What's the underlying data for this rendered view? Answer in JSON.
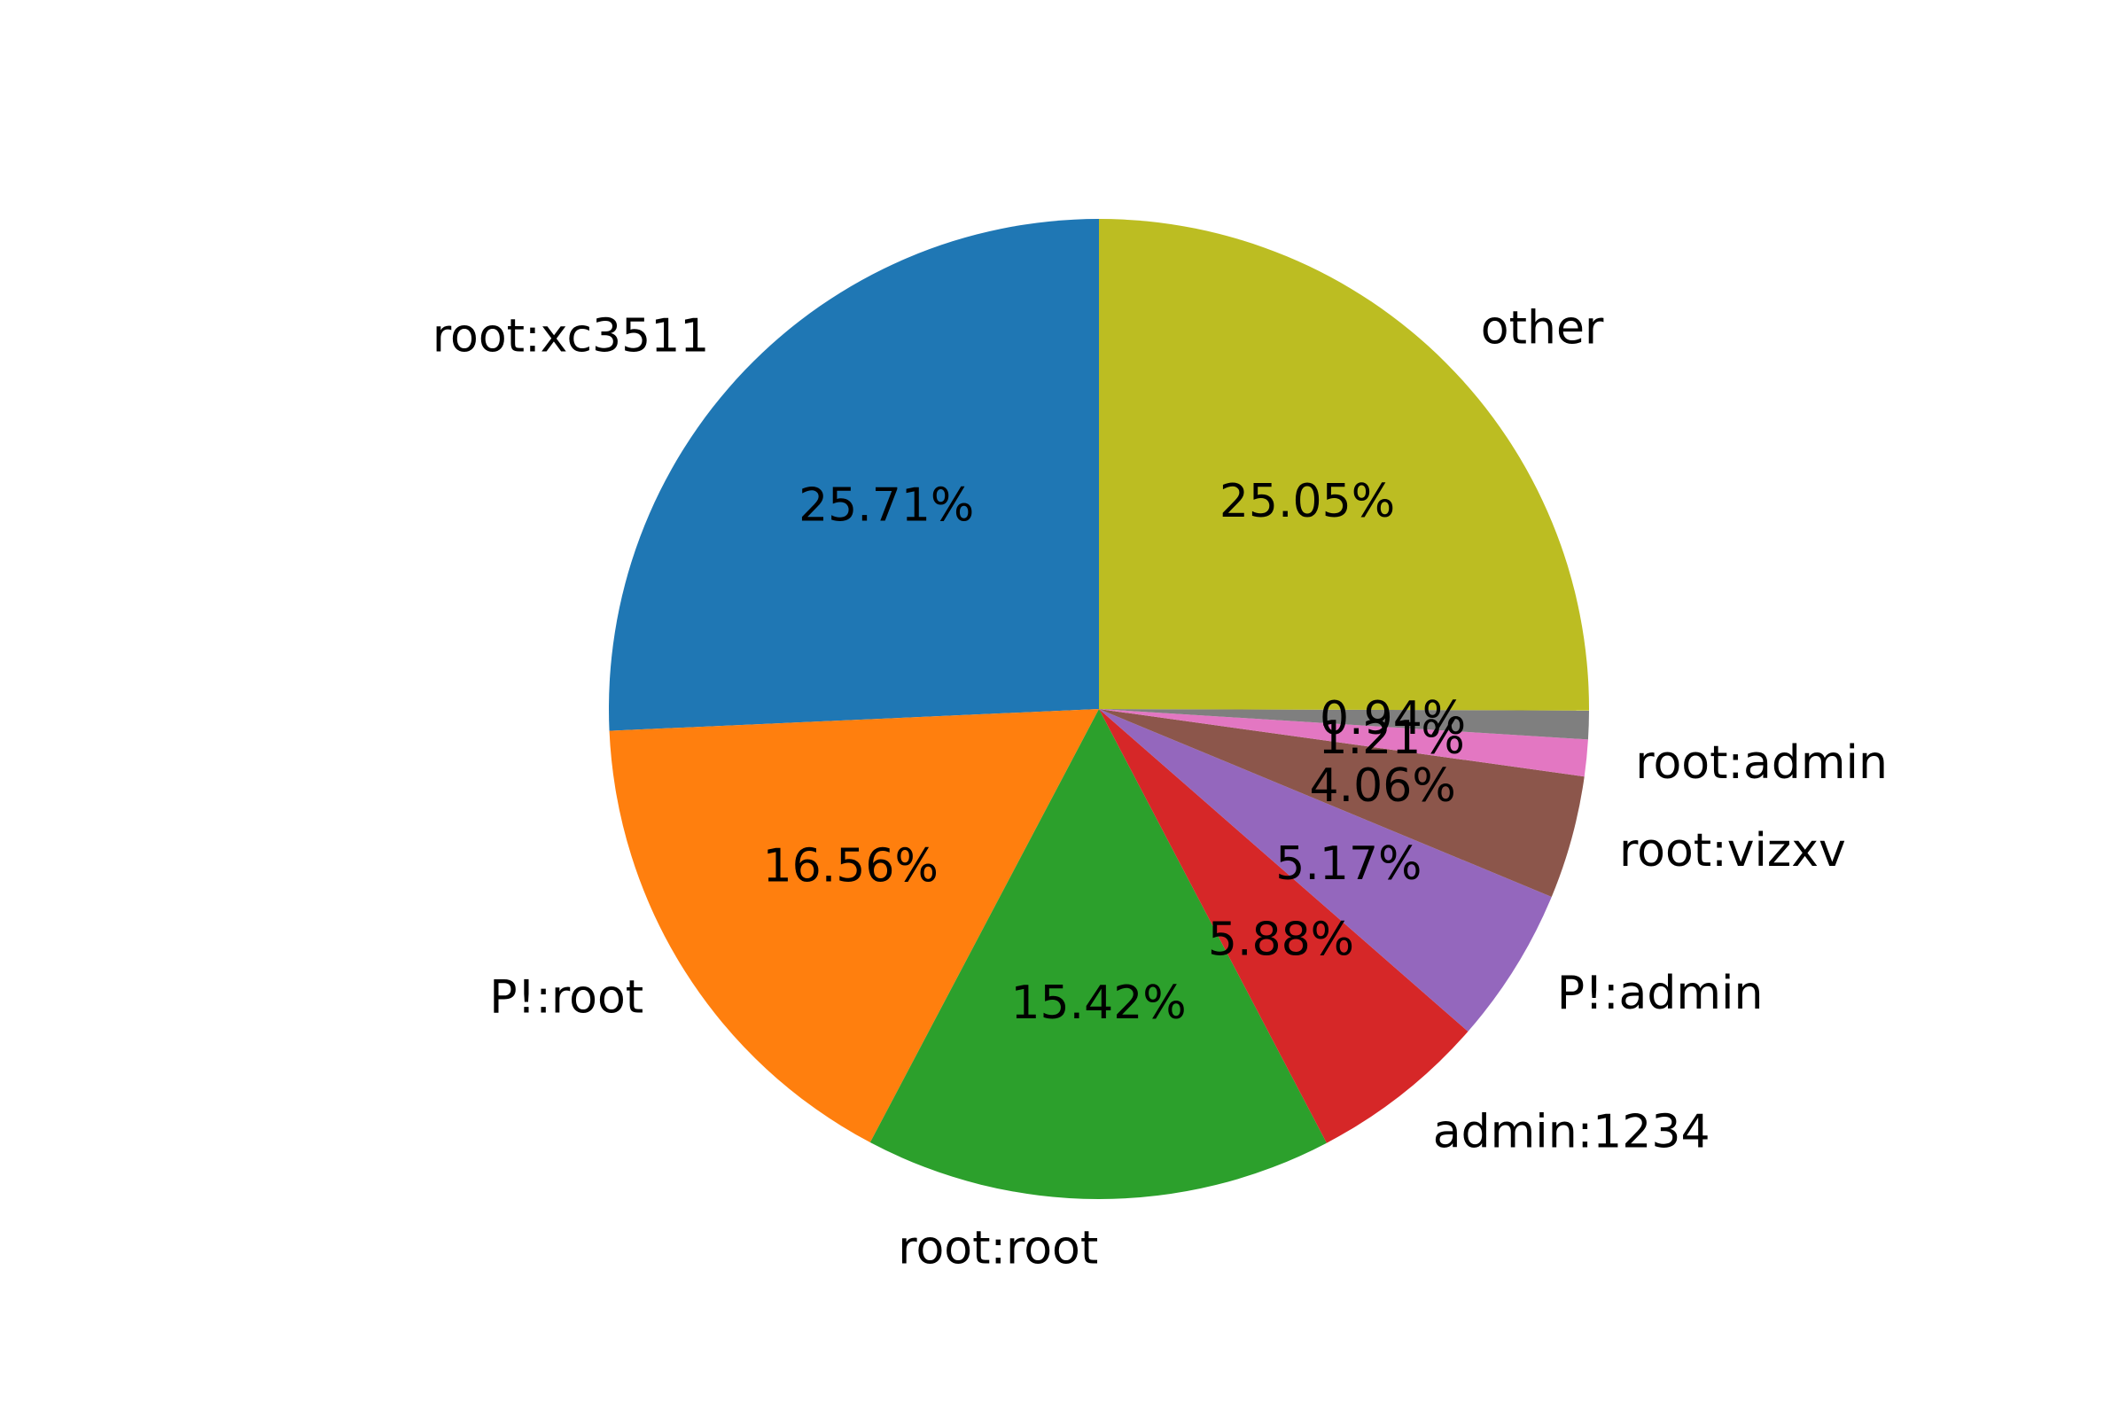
{
  "chart_data": {
    "type": "pie",
    "start_angle_deg": 90,
    "direction": "counterclockwise",
    "slices": [
      {
        "label": "root:xc3511",
        "value": 25.71,
        "pct_text": "25.71%",
        "color": "#1f77b4"
      },
      {
        "label": "P!:root",
        "value": 16.56,
        "pct_text": "16.56%",
        "color": "#ff7f0e"
      },
      {
        "label": "root:root",
        "value": 15.42,
        "pct_text": "15.42%",
        "color": "#2ca02c"
      },
      {
        "label": "admin:1234",
        "value": 5.88,
        "pct_text": "5.88%",
        "color": "#d62728"
      },
      {
        "label": "P!:admin",
        "value": 5.17,
        "pct_text": "5.17%",
        "color": "#9467bd"
      },
      {
        "label": "root:vizxv",
        "value": 4.06,
        "pct_text": "4.06%",
        "color": "#8c564b"
      },
      {
        "label": "root:admin",
        "value": 1.21,
        "pct_text": "1.21%",
        "color": "#e377c2"
      },
      {
        "label": "",
        "value": 0.94,
        "pct_text": "0.94%",
        "color": "#7f7f7f"
      },
      {
        "label": "other",
        "value": 25.05,
        "pct_text": "25.05%",
        "color": "#bcbd22"
      }
    ]
  }
}
